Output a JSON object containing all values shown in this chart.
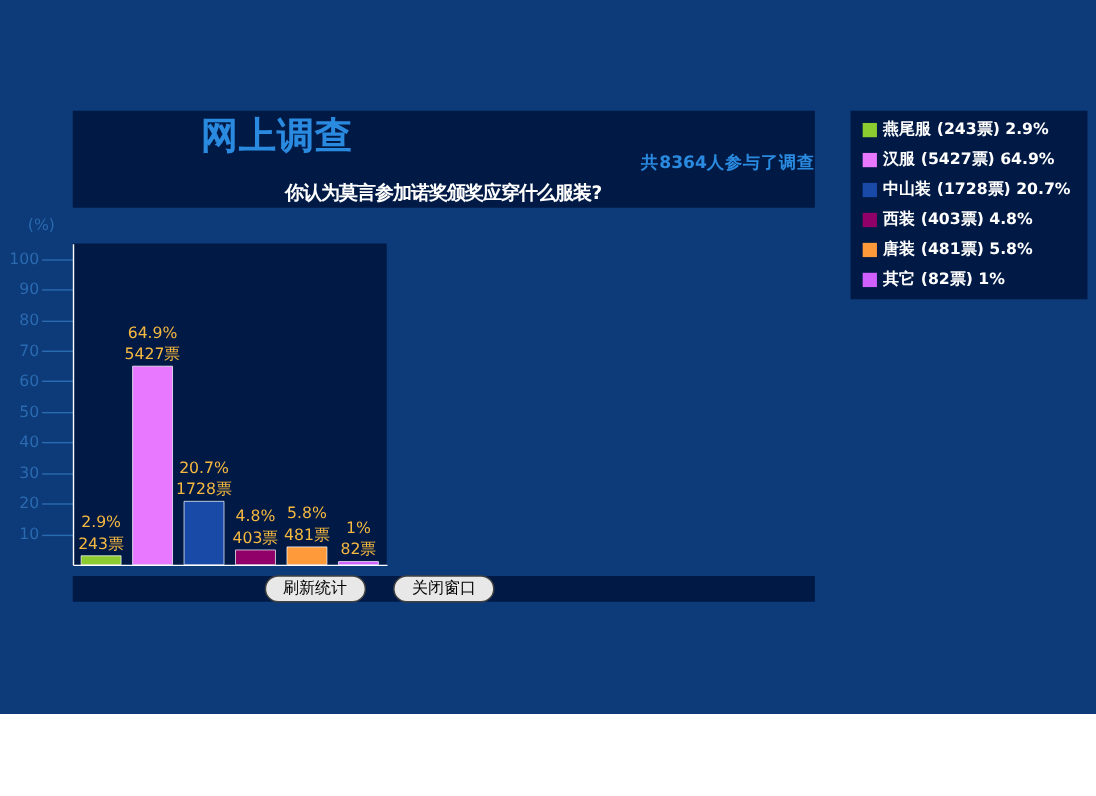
{
  "chart_data": {
    "type": "bar",
    "title": "网上调查",
    "subtitle": "你认为莫言参加诺奖颁奖应穿什么服装?",
    "ylabel": "(%)",
    "categories": [
      null,
      null,
      null,
      null,
      null,
      null
    ],
    "series": [
      {
        "name": "燕尾服 (243票)  2.9%",
        "color": "#8ccc30",
        "values": [
          2.9,
          null,
          null,
          null,
          null,
          null
        ]
      },
      {
        "name": "汉服 (5427票)  64.9%",
        "color": "#e878ff",
        "values": [
          null,
          64.9,
          null,
          null,
          null,
          null
        ]
      },
      {
        "name": "中山装 (1728票)  20.7%",
        "color": "#1a4aa8",
        "values": [
          null,
          null,
          20.7,
          null,
          null,
          null
        ]
      },
      {
        "name": "西装 (403票)  4.8%",
        "color": "#900068",
        "values": [
          null,
          null,
          null,
          4.8,
          null,
          null
        ]
      },
      {
        "name": "唐装 (481票)  5.8%",
        "color": "#ff9a3a",
        "values": [
          null,
          null,
          null,
          null,
          5.8,
          null
        ]
      },
      {
        "name": "其它 (82票)  1%",
        "color": "#d060ff",
        "values": [
          null,
          null,
          null,
          null,
          null,
          1
        ]
      }
    ],
    "value_labels": [
      "2.9%\n243票",
      "64.9%\n5427票",
      "20.7%\n1728票",
      "4.8%\n403票",
      "5.8%\n481票",
      "1%\n82票"
    ],
    "ylim": [
      0,
      105
    ],
    "yticks": [
      10,
      20,
      30,
      40,
      50,
      60,
      70,
      80,
      90,
      100
    ],
    "tick_labels": "y",
    "grid": false,
    "legend": "right",
    "annotations": [
      "共8364人参与了调查",
      "刷新统计",
      "关闭窗口"
    ]
  }
}
